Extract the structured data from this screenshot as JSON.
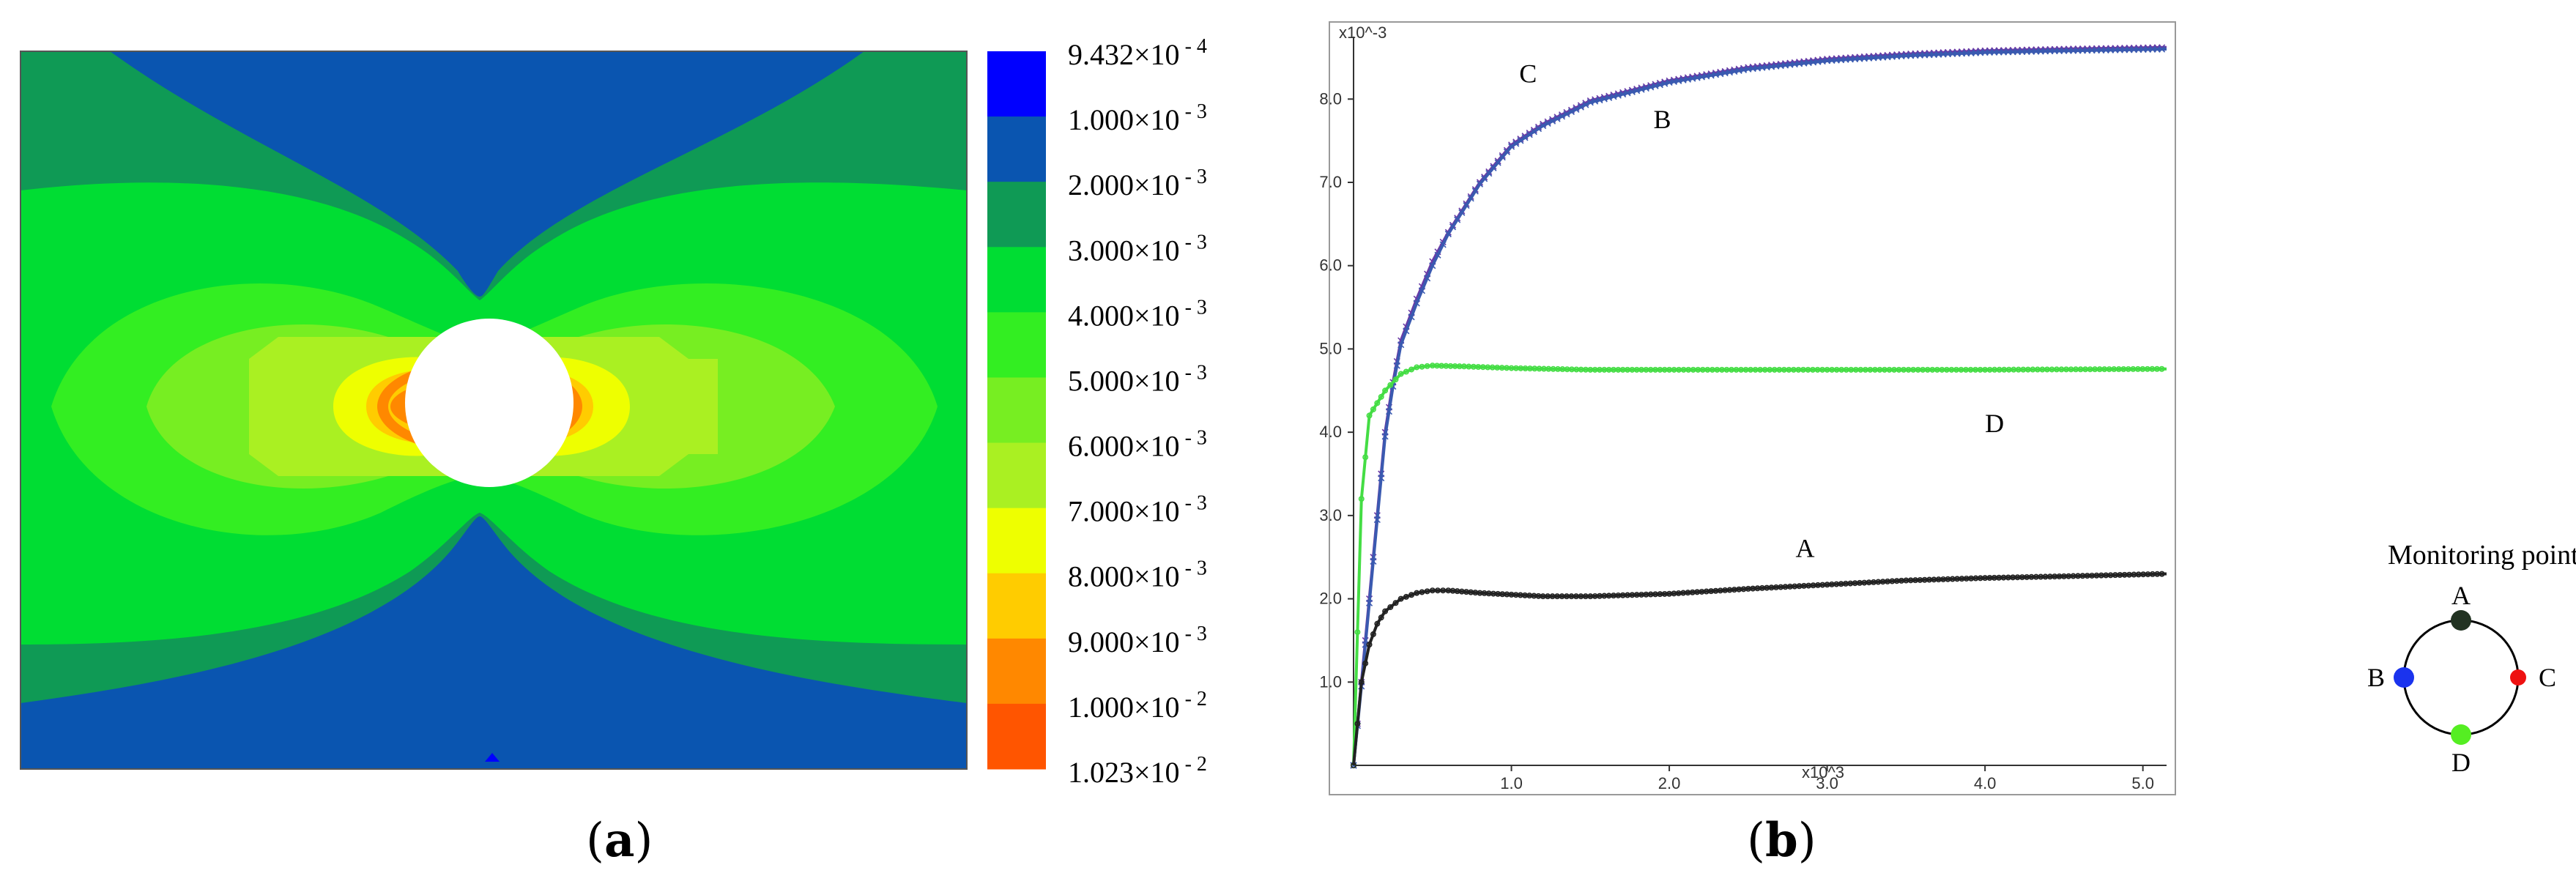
{
  "panel_a": {
    "caption_open": "(",
    "caption_letter": "a",
    "caption_close": ")",
    "legend": [
      {
        "mantissa": "9.432",
        "exp": "- 4",
        "color": "#0000ff"
      },
      {
        "mantissa": "1.000",
        "exp": "- 3",
        "color": "#0a55b0"
      },
      {
        "mantissa": "2.000",
        "exp": "- 3",
        "color": "#0f9a55"
      },
      {
        "mantissa": "3.000",
        "exp": "- 3",
        "color": "#00dd33"
      },
      {
        "mantissa": "4.000",
        "exp": "- 3",
        "color": "#33ee22"
      },
      {
        "mantissa": "5.000",
        "exp": "- 3",
        "color": "#77ee22"
      },
      {
        "mantissa": "6.000",
        "exp": "- 3",
        "color": "#aaf022"
      },
      {
        "mantissa": "7.000",
        "exp": "- 3",
        "color": "#eeff00"
      },
      {
        "mantissa": "8.000",
        "exp": "- 3",
        "color": "#ffcc00"
      },
      {
        "mantissa": "9.000",
        "exp": "- 3",
        "color": "#ff8800"
      },
      {
        "mantissa": "1.000",
        "exp": "- 2",
        "color": "#ff5500"
      },
      {
        "mantissa": "1.023",
        "exp": "- 2",
        "color": "#ff5500"
      }
    ],
    "times_sign": "×10"
  },
  "panel_b": {
    "caption_open": "(",
    "caption_letter": "b",
    "caption_close": ")",
    "inset": {
      "title": "Monitoring point",
      "points": [
        {
          "label": "A",
          "color": "#223322"
        },
        {
          "label": "B",
          "color": "#1a33ee"
        },
        {
          "label": "C",
          "color": "#ee1111"
        },
        {
          "label": "D",
          "color": "#55ee22"
        }
      ]
    }
  },
  "chart_data": {
    "type": "line",
    "x_multiplier_label": "x10^3",
    "y_multiplier_label": "x10^-3",
    "xlim": [
      0,
      5.15
    ],
    "ylim": [
      0,
      8.75
    ],
    "x_ticks": [
      "1.0",
      "2.0",
      "3.0",
      "4.0",
      "5.0"
    ],
    "y_ticks": [
      "1.0",
      "2.0",
      "3.0",
      "4.0",
      "5.0",
      "6.0",
      "7.0",
      "8.0"
    ],
    "x_tick_values": [
      1,
      2,
      3,
      4,
      5
    ],
    "y_tick_values": [
      1,
      2,
      3,
      4,
      5,
      6,
      7,
      8
    ],
    "series": [
      {
        "name": "C",
        "color": "#6a3aa6",
        "marker": "x",
        "x": [
          0,
          0.05,
          0.1,
          0.15,
          0.2,
          0.25,
          0.3,
          0.4,
          0.5,
          0.6,
          0.8,
          1.0,
          1.2,
          1.5,
          2.0,
          2.5,
          3.0,
          3.5,
          4.0,
          4.5,
          5.15
        ],
        "y": [
          0,
          1.0,
          2.0,
          3.0,
          4.0,
          4.6,
          5.1,
          5.6,
          6.05,
          6.4,
          7.0,
          7.45,
          7.7,
          7.98,
          8.22,
          8.38,
          8.48,
          8.54,
          8.58,
          8.6,
          8.62
        ]
      },
      {
        "name": "B",
        "color": "#3a5ab0",
        "marker": "x",
        "x": [
          0,
          0.05,
          0.1,
          0.15,
          0.2,
          0.25,
          0.3,
          0.4,
          0.5,
          0.6,
          0.8,
          1.0,
          1.2,
          1.5,
          2.0,
          2.5,
          3.0,
          3.5,
          4.0,
          4.5,
          5.15
        ],
        "y": [
          0,
          0.95,
          1.95,
          2.95,
          3.95,
          4.55,
          5.05,
          5.55,
          6.0,
          6.38,
          6.98,
          7.43,
          7.68,
          7.96,
          8.2,
          8.36,
          8.46,
          8.52,
          8.56,
          8.58,
          8.6
        ]
      },
      {
        "name": "D",
        "color": "#44dd44",
        "marker": "o",
        "x": [
          0,
          0.05,
          0.1,
          0.15,
          0.2,
          0.3,
          0.4,
          0.5,
          0.7,
          1.0,
          1.5,
          2.0,
          3.0,
          4.0,
          5.15
        ],
        "y": [
          0,
          3.2,
          4.2,
          4.35,
          4.5,
          4.7,
          4.78,
          4.8,
          4.79,
          4.77,
          4.75,
          4.75,
          4.75,
          4.75,
          4.76
        ]
      },
      {
        "name": "A",
        "color": "#222222",
        "marker": "o",
        "x": [
          0,
          0.05,
          0.1,
          0.15,
          0.2,
          0.3,
          0.4,
          0.5,
          0.6,
          0.8,
          1.0,
          1.2,
          1.5,
          2.0,
          2.5,
          3.0,
          3.5,
          4.0,
          4.5,
          5.15
        ],
        "y": [
          0,
          1.0,
          1.45,
          1.7,
          1.85,
          2.0,
          2.07,
          2.1,
          2.1,
          2.07,
          2.05,
          2.03,
          2.03,
          2.06,
          2.12,
          2.17,
          2.22,
          2.25,
          2.27,
          2.3
        ]
      }
    ],
    "annotations": [
      {
        "text": "C",
        "x": 1.05,
        "y": 8.2
      },
      {
        "text": "B",
        "x": 1.9,
        "y": 7.65
      },
      {
        "text": "D",
        "x": 4.0,
        "y": 4.0
      },
      {
        "text": "A",
        "x": 2.8,
        "y": 2.5
      }
    ]
  }
}
